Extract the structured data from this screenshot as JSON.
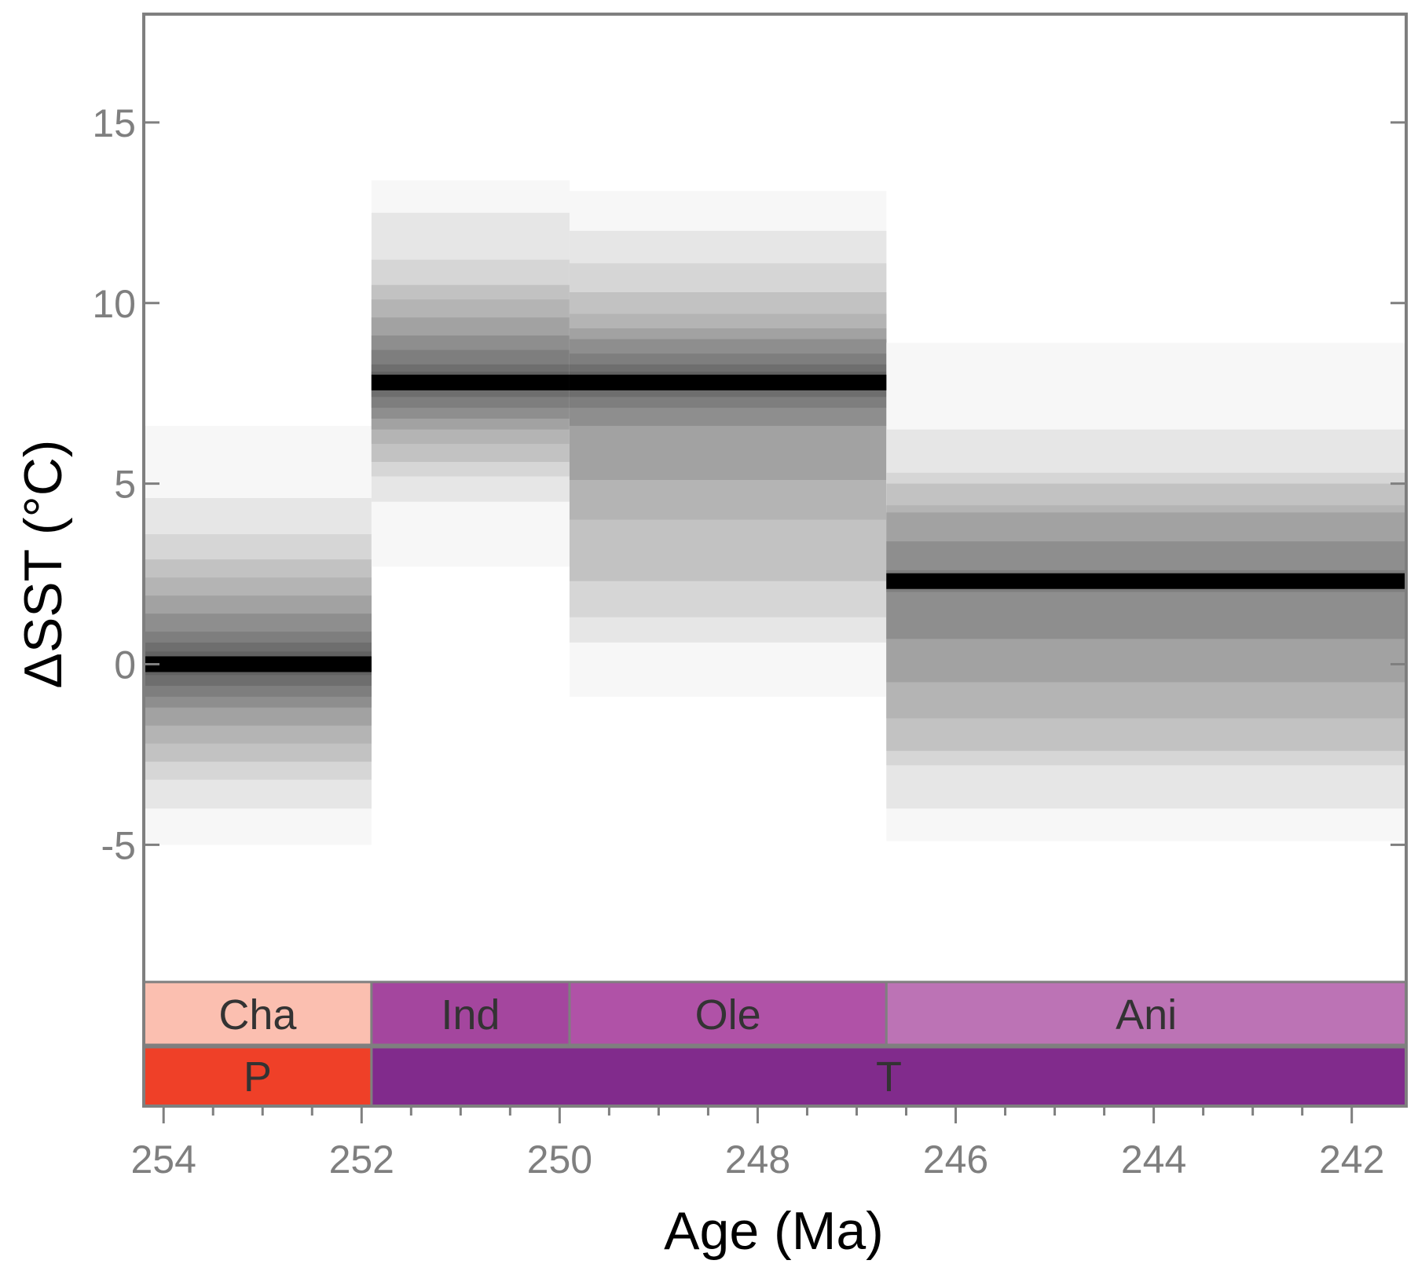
{
  "chart_data": {
    "type": "heatmap",
    "title": "",
    "xlabel": "Age (Ma)",
    "ylabel": "ΔSST (°C)",
    "xlim": [
      254.2,
      241.45
    ],
    "ylim": [
      -8.8,
      18
    ],
    "x_reversed": true,
    "x_ticks": [
      254,
      252,
      250,
      248,
      246,
      244,
      242
    ],
    "x_minor_step": 0.5,
    "y_ticks": [
      -5,
      0,
      5,
      10,
      15
    ],
    "grid": false,
    "legend": "none",
    "intervals": [
      {
        "age_start": 254.2,
        "age_end": 251.9,
        "median": 0,
        "bands": [
          {
            "lo": -5.0,
            "hi": 6.6
          },
          {
            "lo": -4.0,
            "hi": 4.6
          },
          {
            "lo": -3.2,
            "hi": 3.6
          },
          {
            "lo": -2.7,
            "hi": 2.9
          },
          {
            "lo": -2.2,
            "hi": 2.4
          },
          {
            "lo": -1.7,
            "hi": 1.9
          },
          {
            "lo": -1.2,
            "hi": 1.4
          },
          {
            "lo": -0.9,
            "hi": 0.9
          },
          {
            "lo": -0.6,
            "hi": 0.6
          },
          {
            "lo": -0.3,
            "hi": 0.35
          }
        ]
      },
      {
        "age_start": 251.9,
        "age_end": 249.9,
        "median": 7.8,
        "bands": [
          {
            "lo": 2.7,
            "hi": 13.4
          },
          {
            "lo": 4.5,
            "hi": 12.5
          },
          {
            "lo": 5.2,
            "hi": 11.2
          },
          {
            "lo": 5.6,
            "hi": 10.5
          },
          {
            "lo": 6.1,
            "hi": 10.1
          },
          {
            "lo": 6.5,
            "hi": 9.6
          },
          {
            "lo": 6.8,
            "hi": 9.1
          },
          {
            "lo": 7.1,
            "hi": 8.7
          },
          {
            "lo": 7.4,
            "hi": 8.3
          },
          {
            "lo": 7.6,
            "hi": 8.1
          }
        ]
      },
      {
        "age_start": 249.9,
        "age_end": 246.7,
        "median": 7.8,
        "bands": [
          {
            "lo": -0.9,
            "hi": 13.1
          },
          {
            "lo": 0.6,
            "hi": 12.0
          },
          {
            "lo": 1.3,
            "hi": 11.1
          },
          {
            "lo": 2.3,
            "hi": 10.3
          },
          {
            "lo": 4.0,
            "hi": 9.7
          },
          {
            "lo": 5.1,
            "hi": 9.3
          },
          {
            "lo": 6.6,
            "hi": 9.0
          },
          {
            "lo": 7.1,
            "hi": 8.6
          },
          {
            "lo": 7.4,
            "hi": 8.3
          },
          {
            "lo": 7.6,
            "hi": 8.1
          }
        ]
      },
      {
        "age_start": 246.7,
        "age_end": 241.45,
        "median": 2.3,
        "bands": [
          {
            "lo": -4.9,
            "hi": 8.9
          },
          {
            "lo": -4.0,
            "hi": 6.5
          },
          {
            "lo": -2.8,
            "hi": 5.3
          },
          {
            "lo": -2.4,
            "hi": 5.0
          },
          {
            "lo": -1.5,
            "hi": 4.4
          },
          {
            "lo": -0.5,
            "hi": 4.2
          },
          {
            "lo": 0.7,
            "hi": 3.4
          },
          {
            "lo": 2.0,
            "hi": 2.6
          }
        ]
      }
    ],
    "stages": [
      {
        "label": "Cha",
        "age_start": 254.2,
        "age_end": 251.9,
        "color": "#fbbfb0"
      },
      {
        "label": "Ind",
        "age_start": 251.9,
        "age_end": 249.9,
        "color": "#a4469e"
      },
      {
        "label": "Ole",
        "age_start": 249.9,
        "age_end": 246.7,
        "color": "#b052a7"
      },
      {
        "label": "Ani",
        "age_start": 246.7,
        "age_end": 241.45,
        "color": "#bc73b5"
      }
    ],
    "periods": [
      {
        "label": "P",
        "age_start": 254.2,
        "age_end": 251.9,
        "color": "#ef4028"
      },
      {
        "label": "T",
        "age_start": 251.9,
        "age_end": 241.45,
        "color": "#812b8c"
      }
    ],
    "band_gray_levels": [
      "#f7f7f7",
      "#e6e6e6",
      "#d6d6d6",
      "#c2c2c2",
      "#b4b4b4",
      "#a2a2a2",
      "#8e8e8e",
      "#7e7e7e",
      "#6e6e6e",
      "#626262"
    ],
    "median_color": "#000000",
    "frame_color": "#7f7f7f"
  }
}
